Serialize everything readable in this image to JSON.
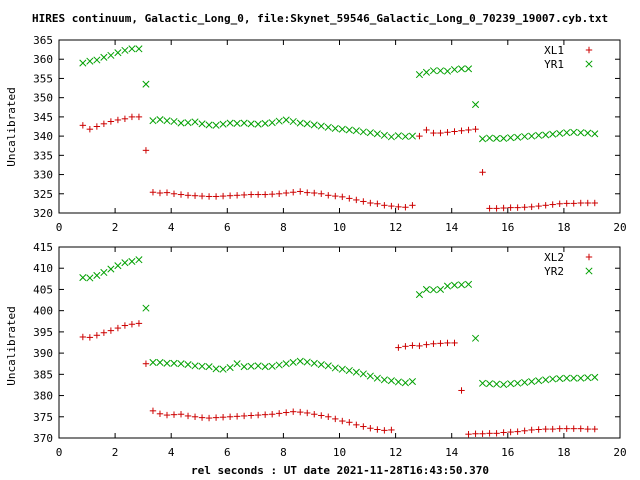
{
  "title": "HIRES continuum, Galactic_Long_0, file:Skynet_59546_Galactic_Long_0_70239_19007.cyb.txt",
  "xlabel": "rel seconds : UT date 2021-11-28T16:43:50.370",
  "colors": {
    "plus_series": "#cc0000",
    "cross_series": "#00a000",
    "axis": "#000000"
  },
  "chart_data": [
    {
      "type": "scatter",
      "ylabel": "Uncalibrated",
      "xlim": [
        0,
        20
      ],
      "ylim": [
        320,
        365
      ],
      "xticks": [
        0,
        2,
        4,
        6,
        8,
        10,
        12,
        14,
        16,
        18,
        20
      ],
      "yticks": [
        320,
        325,
        330,
        335,
        340,
        345,
        350,
        355,
        360,
        365
      ],
      "grid": false,
      "legend_position": "top-right",
      "series": [
        {
          "name": "XL1",
          "marker": "plus",
          "x": [
            0.85,
            1.1,
            1.35,
            1.6,
            1.85,
            2.1,
            2.35,
            2.6,
            2.85,
            3.1,
            3.35,
            3.6,
            3.85,
            4.1,
            4.35,
            4.6,
            4.85,
            5.1,
            5.35,
            5.6,
            5.85,
            6.1,
            6.35,
            6.6,
            6.85,
            7.1,
            7.35,
            7.6,
            7.85,
            8.1,
            8.35,
            8.6,
            8.85,
            9.1,
            9.35,
            9.6,
            9.85,
            10.1,
            10.35,
            10.6,
            10.85,
            11.1,
            11.35,
            11.6,
            11.85,
            12.1,
            12.35,
            12.6,
            12.85,
            13.1,
            13.35,
            13.6,
            13.85,
            14.1,
            14.35,
            14.6,
            14.85,
            15.1,
            15.35,
            15.6,
            15.85,
            16.1,
            16.35,
            16.6,
            16.85,
            17.1,
            17.35,
            17.6,
            17.85,
            18.1,
            18.35,
            18.6,
            18.85,
            19.1
          ],
          "y": [
            342.8,
            341.8,
            342.5,
            343.2,
            343.8,
            344.2,
            344.5,
            345.0,
            345.0,
            336.3,
            325.4,
            325.2,
            325.3,
            325.0,
            324.8,
            324.6,
            324.5,
            324.4,
            324.3,
            324.3,
            324.4,
            324.5,
            324.6,
            324.7,
            324.8,
            324.8,
            324.8,
            324.9,
            325.0,
            325.2,
            325.4,
            325.6,
            325.3,
            325.2,
            325.0,
            324.6,
            324.4,
            324.2,
            323.8,
            323.4,
            323.0,
            322.6,
            322.4,
            322.0,
            321.8,
            321.6,
            321.5,
            322.0,
            340.0,
            341.6,
            340.8,
            340.8,
            341.0,
            341.2,
            341.4,
            341.6,
            341.8,
            330.6,
            321.2,
            321.2,
            321.3,
            321.4,
            321.4,
            321.5,
            321.6,
            321.8,
            322.0,
            322.2,
            322.4,
            322.5,
            322.5,
            322.6,
            322.6,
            322.6
          ]
        },
        {
          "name": "YR1",
          "marker": "cross",
          "x": [
            0.85,
            1.1,
            1.35,
            1.6,
            1.85,
            2.1,
            2.35,
            2.6,
            2.85,
            3.1,
            3.35,
            3.6,
            3.85,
            4.1,
            4.35,
            4.6,
            4.85,
            5.1,
            5.35,
            5.6,
            5.85,
            6.1,
            6.35,
            6.6,
            6.85,
            7.1,
            7.35,
            7.6,
            7.85,
            8.1,
            8.35,
            8.6,
            8.85,
            9.1,
            9.35,
            9.6,
            9.85,
            10.1,
            10.35,
            10.6,
            10.85,
            11.1,
            11.35,
            11.6,
            11.85,
            12.1,
            12.35,
            12.6,
            12.85,
            13.1,
            13.35,
            13.6,
            13.85,
            14.1,
            14.35,
            14.6,
            14.85,
            15.1,
            15.35,
            15.6,
            15.85,
            16.1,
            16.35,
            16.6,
            16.85,
            17.1,
            17.35,
            17.6,
            17.85,
            18.1,
            18.35,
            18.6,
            18.85,
            19.1
          ],
          "y": [
            359.0,
            359.5,
            359.8,
            360.5,
            361.0,
            361.7,
            362.3,
            362.7,
            362.7,
            353.5,
            344.0,
            344.3,
            344.0,
            343.8,
            343.4,
            343.5,
            343.7,
            343.2,
            342.9,
            342.8,
            343.1,
            343.4,
            343.3,
            343.4,
            343.2,
            343.1,
            343.3,
            343.5,
            343.9,
            344.2,
            343.8,
            343.4,
            343.2,
            342.9,
            342.6,
            342.3,
            342.0,
            341.8,
            341.6,
            341.4,
            341.1,
            340.9,
            340.6,
            340.2,
            339.8,
            340.1,
            339.9,
            340.0,
            356.0,
            356.6,
            357.0,
            357.0,
            356.9,
            357.3,
            357.5,
            357.5,
            348.2,
            339.3,
            339.5,
            339.4,
            339.4,
            339.6,
            339.7,
            339.9,
            340.0,
            340.2,
            340.3,
            340.5,
            340.7,
            340.9,
            341.0,
            340.9,
            340.8,
            340.6
          ]
        }
      ]
    },
    {
      "type": "scatter",
      "ylabel": "Uncalibrated",
      "xlim": [
        0,
        20
      ],
      "ylim": [
        370,
        415
      ],
      "xticks": [
        0,
        2,
        4,
        6,
        8,
        10,
        12,
        14,
        16,
        18,
        20
      ],
      "yticks": [
        370,
        375,
        380,
        385,
        390,
        395,
        400,
        405,
        410,
        415
      ],
      "grid": false,
      "legend_position": "top-right",
      "series": [
        {
          "name": "XL2",
          "marker": "plus",
          "x": [
            0.85,
            1.1,
            1.35,
            1.6,
            1.85,
            2.1,
            2.35,
            2.6,
            2.85,
            3.1,
            3.35,
            3.6,
            3.85,
            4.1,
            4.35,
            4.6,
            4.85,
            5.1,
            5.35,
            5.6,
            5.85,
            6.1,
            6.35,
            6.6,
            6.85,
            7.1,
            7.35,
            7.6,
            7.85,
            8.1,
            8.35,
            8.6,
            8.85,
            9.1,
            9.35,
            9.6,
            9.85,
            10.1,
            10.35,
            10.6,
            10.85,
            11.1,
            11.35,
            11.6,
            11.85,
            12.1,
            12.35,
            12.6,
            12.85,
            13.1,
            13.35,
            13.6,
            13.85,
            14.1,
            14.35,
            14.6,
            14.85,
            15.1,
            15.35,
            15.6,
            15.85,
            16.1,
            16.35,
            16.6,
            16.85,
            17.1,
            17.35,
            17.6,
            17.85,
            18.1,
            18.35,
            18.6,
            18.85,
            19.1
          ],
          "y": [
            393.8,
            393.7,
            394.2,
            394.8,
            395.3,
            395.9,
            396.5,
            396.8,
            397.0,
            387.5,
            376.4,
            375.7,
            375.4,
            375.5,
            375.6,
            375.2,
            375.0,
            374.8,
            374.7,
            374.8,
            374.9,
            375.0,
            375.1,
            375.2,
            375.3,
            375.4,
            375.5,
            375.6,
            375.8,
            376.0,
            376.2,
            376.1,
            375.9,
            375.6,
            375.3,
            375.0,
            374.5,
            374.0,
            373.7,
            373.1,
            372.7,
            372.3,
            372.0,
            371.8,
            371.9,
            391.3,
            391.6,
            391.8,
            391.7,
            392.0,
            392.2,
            392.3,
            392.4,
            392.4,
            381.2,
            370.9,
            371.0,
            371.0,
            371.1,
            371.1,
            371.3,
            371.4,
            371.5,
            371.7,
            371.9,
            372.0,
            372.1,
            372.1,
            372.2,
            372.2,
            372.2,
            372.2,
            372.1,
            372.1
          ]
        },
        {
          "name": "YR2",
          "marker": "cross",
          "x": [
            0.85,
            1.1,
            1.35,
            1.6,
            1.85,
            2.1,
            2.35,
            2.6,
            2.85,
            3.1,
            3.35,
            3.6,
            3.85,
            4.1,
            4.35,
            4.6,
            4.85,
            5.1,
            5.35,
            5.6,
            5.85,
            6.1,
            6.35,
            6.6,
            6.85,
            7.1,
            7.35,
            7.6,
            7.85,
            8.1,
            8.35,
            8.6,
            8.85,
            9.1,
            9.35,
            9.6,
            9.85,
            10.1,
            10.35,
            10.6,
            10.85,
            11.1,
            11.35,
            11.6,
            11.85,
            12.1,
            12.35,
            12.6,
            12.85,
            13.1,
            13.35,
            13.6,
            13.85,
            14.1,
            14.35,
            14.6,
            14.85,
            15.1,
            15.35,
            15.6,
            15.85,
            16.1,
            16.35,
            16.6,
            16.85,
            17.1,
            17.35,
            17.6,
            17.85,
            18.1,
            18.35,
            18.6,
            18.85,
            19.1
          ],
          "y": [
            407.8,
            407.7,
            408.3,
            409.0,
            409.8,
            410.6,
            411.3,
            411.6,
            412.0,
            400.6,
            387.8,
            387.8,
            387.6,
            387.6,
            387.5,
            387.3,
            387.0,
            386.9,
            386.8,
            386.3,
            386.2,
            386.6,
            387.5,
            386.8,
            386.9,
            387.0,
            386.8,
            386.9,
            387.2,
            387.5,
            387.8,
            388.1,
            387.9,
            387.6,
            387.3,
            387.0,
            386.5,
            386.2,
            385.9,
            385.5,
            385.1,
            384.6,
            384.1,
            383.7,
            383.5,
            383.2,
            383.0,
            383.3,
            403.8,
            405.0,
            404.9,
            405.0,
            405.8,
            406.0,
            406.1,
            406.2,
            393.5,
            382.9,
            382.8,
            382.7,
            382.6,
            382.8,
            382.9,
            383.1,
            383.3,
            383.5,
            383.7,
            383.9,
            384.0,
            384.1,
            384.1,
            384.1,
            384.2,
            384.3
          ]
        }
      ]
    }
  ]
}
